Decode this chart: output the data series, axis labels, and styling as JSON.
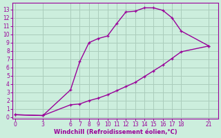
{
  "xlabel": "Windchill (Refroidissement éolien,°C)",
  "bg_color": "#cceedd",
  "line_color": "#990099",
  "grid_color": "#aaccbb",
  "upper_x": [
    0,
    3,
    6,
    7,
    8,
    9,
    10,
    11,
    12,
    13,
    14,
    15,
    16,
    17,
    18,
    21
  ],
  "upper_y": [
    0.3,
    0.2,
    3.3,
    6.7,
    9.0,
    9.5,
    9.8,
    11.3,
    12.7,
    12.8,
    13.2,
    13.2,
    12.9,
    12.0,
    10.4,
    8.6
  ],
  "lower_x": [
    0,
    3,
    6,
    7,
    8,
    9,
    10,
    11,
    12,
    13,
    14,
    15,
    16,
    17,
    18,
    21
  ],
  "lower_y": [
    0.3,
    0.2,
    1.5,
    1.6,
    2.0,
    2.3,
    2.7,
    3.2,
    3.7,
    4.2,
    4.9,
    5.6,
    6.3,
    7.1,
    7.9,
    8.6
  ],
  "xticks": [
    0,
    3,
    6,
    7,
    8,
    9,
    10,
    11,
    12,
    13,
    14,
    15,
    16,
    17,
    18,
    21
  ],
  "yticks": [
    0,
    1,
    2,
    3,
    4,
    5,
    6,
    7,
    8,
    9,
    10,
    11,
    12,
    13
  ],
  "xlim": [
    -0.3,
    22
  ],
  "ylim": [
    -0.2,
    13.8
  ],
  "axis_label_color": "#990099",
  "tick_color": "#990099",
  "spine_color": "#990099"
}
